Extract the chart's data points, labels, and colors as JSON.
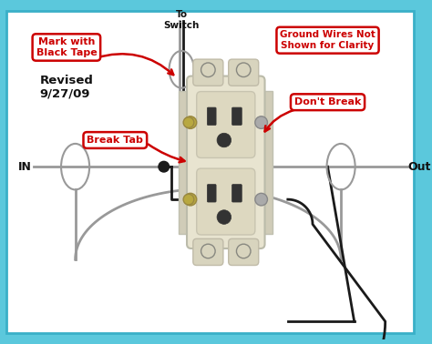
{
  "bg_outer": "#5bc8dc",
  "bg_inner": "#ffffff",
  "border_color": "#3ab0c8",
  "title_revised": "Revised\n9/27/09",
  "label_mark_tape": "Mark with\nBlack Tape",
  "label_ground": "Ground Wires Not\nShown for Clarity",
  "label_break_tab": "Break Tab",
  "label_dont_break": "Don't Break",
  "label_to_switch": "To\nSwitch",
  "label_in": "IN",
  "label_out": "Out",
  "outlet_body_color": "#e8e4d0",
  "outlet_face_color": "#ddd8c0",
  "outlet_mount_color": "#d8d4be",
  "wire_black": "#1a1a1a",
  "wire_white": "#999999",
  "red_color": "#cc0000",
  "text_color": "#111111",
  "screw_brass": "#b8a840",
  "screw_silver": "#aaaaaa"
}
